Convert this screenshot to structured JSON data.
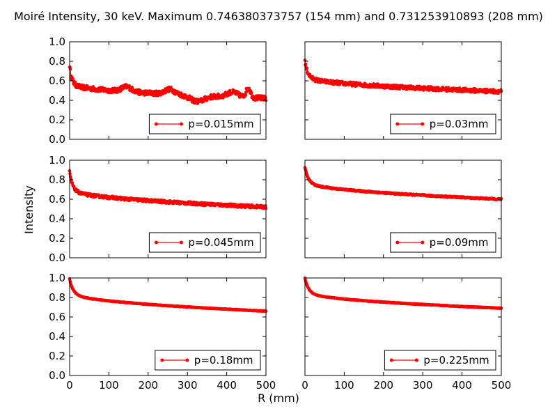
{
  "figure": {
    "title": "Moiré Intensity, 30 keV. Maximum 0.746380373757 (154 mm) and 0.731253910893 (208 mm)",
    "xlabel": "R (mm)",
    "ylabel": "Intensity",
    "series_color": "#ff0000"
  },
  "chart_data": [
    {
      "type": "line",
      "legend": "p=0.015mm",
      "legend_position": "lower-right",
      "xlim": [
        0,
        500
      ],
      "ylim": [
        0.0,
        1.0
      ],
      "x_ticks": [
        "0",
        "100",
        "200",
        "300",
        "400",
        "500"
      ],
      "y_ticks": [
        "0.0",
        "0.2",
        "0.4",
        "0.6",
        "0.8",
        "1.0"
      ],
      "show_x_tick_labels": false,
      "show_y_tick_labels": true,
      "profile": {
        "start": 0.76,
        "plateau": 0.57,
        "tail_end": 0.42,
        "decay_mm": 6,
        "noise": 0.025
      },
      "bumps": [
        [
          145,
          0.05,
          18
        ],
        [
          255,
          0.05,
          18
        ],
        [
          325,
          -0.06,
          25
        ],
        [
          415,
          0.05,
          20
        ],
        [
          455,
          0.1,
          8
        ]
      ]
    },
    {
      "type": "line",
      "legend": "p=0.03mm",
      "legend_position": "lower-right",
      "xlim": [
        0,
        500
      ],
      "ylim": [
        0.0,
        1.0
      ],
      "x_ticks": [
        "0",
        "100",
        "200",
        "300",
        "400",
        "500"
      ],
      "y_ticks": [
        "0.0",
        "0.2",
        "0.4",
        "0.6",
        "0.8",
        "1.0"
      ],
      "show_x_tick_labels": false,
      "show_y_tick_labels": false,
      "profile": {
        "start": 0.8,
        "plateau": 0.64,
        "tail_end": 0.49,
        "decay_mm": 8,
        "noise": 0.02
      },
      "bumps": []
    },
    {
      "type": "line",
      "legend": "p=0.045mm",
      "legend_position": "lower-right",
      "xlim": [
        0,
        500
      ],
      "ylim": [
        0.0,
        1.0
      ],
      "x_ticks": [
        "0",
        "100",
        "200",
        "300",
        "400",
        "500"
      ],
      "y_ticks": [
        "0.0",
        "0.2",
        "0.4",
        "0.6",
        "0.8",
        "1.0"
      ],
      "show_x_tick_labels": false,
      "show_y_tick_labels": true,
      "profile": {
        "start": 0.88,
        "plateau": 0.7,
        "tail_end": 0.52,
        "decay_mm": 8,
        "noise": 0.015
      },
      "bumps": []
    },
    {
      "type": "line",
      "legend": "p=0.09mm",
      "legend_position": "lower-right",
      "xlim": [
        0,
        500
      ],
      "ylim": [
        0.0,
        1.0
      ],
      "x_ticks": [
        "0",
        "100",
        "200",
        "300",
        "400",
        "500"
      ],
      "y_ticks": [
        "0.0",
        "0.2",
        "0.4",
        "0.6",
        "0.8",
        "1.0"
      ],
      "show_x_tick_labels": false,
      "show_y_tick_labels": false,
      "profile": {
        "start": 0.93,
        "plateau": 0.78,
        "tail_end": 0.6,
        "decay_mm": 9,
        "noise": 0.007
      },
      "bumps": []
    },
    {
      "type": "line",
      "legend": "p=0.18mm",
      "legend_position": "lower-right",
      "xlim": [
        0,
        500
      ],
      "ylim": [
        0.0,
        1.0
      ],
      "x_ticks": [
        "0",
        "100",
        "200",
        "300",
        "400",
        "500"
      ],
      "y_ticks": [
        "0.0",
        "0.2",
        "0.4",
        "0.6",
        "0.8",
        "1.0"
      ],
      "show_x_tick_labels": true,
      "show_y_tick_labels": true,
      "profile": {
        "start": 0.99,
        "plateau": 0.85,
        "tail_end": 0.66,
        "decay_mm": 10,
        "noise": 0.003
      },
      "bumps": []
    },
    {
      "type": "line",
      "legend": "p=0.225mm",
      "legend_position": "lower-right",
      "xlim": [
        0,
        500
      ],
      "ylim": [
        0.0,
        1.0
      ],
      "x_ticks": [
        "0",
        "100",
        "200",
        "300",
        "400",
        "500"
      ],
      "y_ticks": [
        "0.0",
        "0.2",
        "0.4",
        "0.6",
        "0.8",
        "1.0"
      ],
      "show_x_tick_labels": true,
      "show_y_tick_labels": false,
      "profile": {
        "start": 1.0,
        "plateau": 0.86,
        "tail_end": 0.69,
        "decay_mm": 10,
        "noise": 0.003
      },
      "bumps": []
    }
  ]
}
